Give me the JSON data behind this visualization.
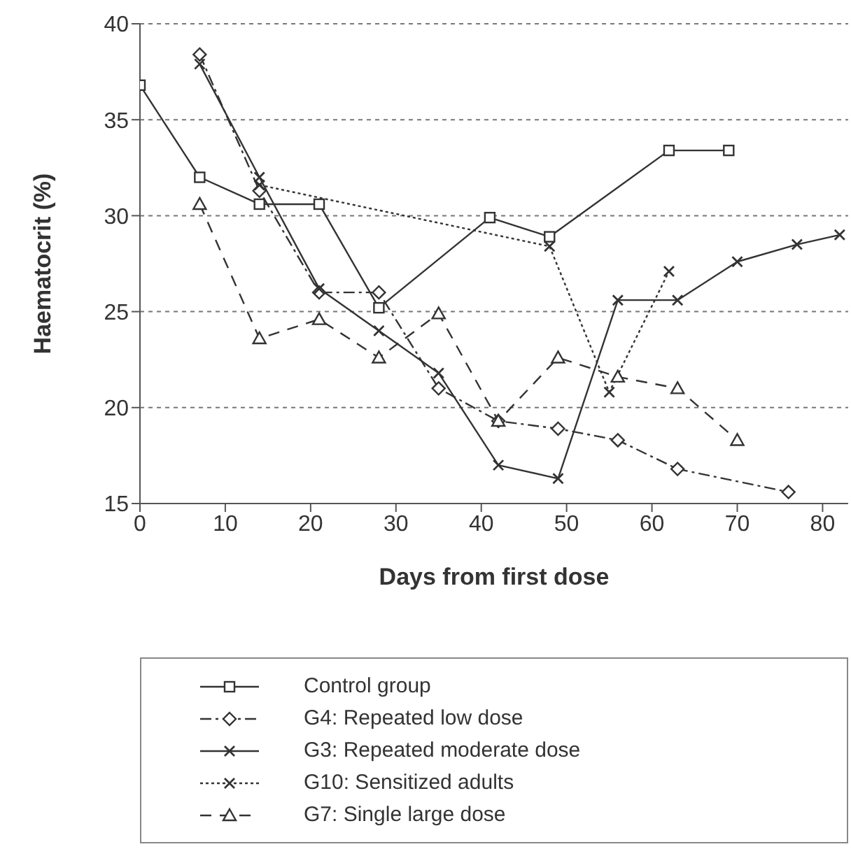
{
  "chart_data": {
    "type": "line",
    "xlabel": "Days from first dose",
    "ylabel": "Haematocrit (%)",
    "xlim": [
      0,
      83
    ],
    "xticks": [
      0,
      10,
      20,
      30,
      40,
      50,
      60,
      70,
      80
    ],
    "ylim": [
      15,
      40
    ],
    "yticks": [
      15,
      20,
      25,
      30,
      35,
      40
    ],
    "grid": "y",
    "legend": "bottom",
    "series": [
      {
        "name": "Control group",
        "color": "#333333",
        "marker": "square",
        "line_style": "solid",
        "x": [
          0,
          7,
          14,
          21,
          28,
          41,
          48,
          62,
          69
        ],
        "values": [
          36.8,
          32,
          30.6,
          30.6,
          25.2,
          29.9,
          28.9,
          33.4,
          33.4
        ]
      },
      {
        "name": "G4: Repeated low dose",
        "color": "#333333",
        "marker": "diamond",
        "line_style": "dashdot",
        "x": [
          7,
          14,
          21,
          28,
          35,
          42,
          49,
          56,
          63,
          76
        ],
        "values": [
          38.4,
          31.3,
          26,
          26,
          21,
          19.3,
          18.9,
          18.3,
          16.8,
          15.6
        ]
      },
      {
        "name": "G3: Repeated moderate dose",
        "color": "#333333",
        "marker": "cross",
        "line_style": "solid",
        "x": [
          7,
          14,
          21,
          28,
          35,
          42,
          49,
          56,
          63,
          70,
          77,
          82
        ],
        "values": [
          37.9,
          32,
          26.2,
          24,
          21.8,
          17,
          16.3,
          25.6,
          25.6,
          27.6,
          28.5,
          29
        ]
      },
      {
        "name": "G10: Sensitized adults",
        "color": "#333333",
        "marker": "cross",
        "line_style": "dotted",
        "x": [
          14,
          48,
          55,
          62
        ],
        "values": [
          31.6,
          28.4,
          20.8,
          27.1
        ]
      },
      {
        "name": "G7: Single large dose",
        "color": "#333333",
        "marker": "triangle",
        "line_style": "dashed",
        "x": [
          7,
          14,
          21,
          28,
          35,
          42,
          49,
          56,
          63,
          70
        ],
        "values": [
          30.6,
          23.6,
          24.6,
          22.6,
          24.9,
          19.3,
          22.6,
          21.6,
          21,
          18.3
        ]
      }
    ]
  }
}
